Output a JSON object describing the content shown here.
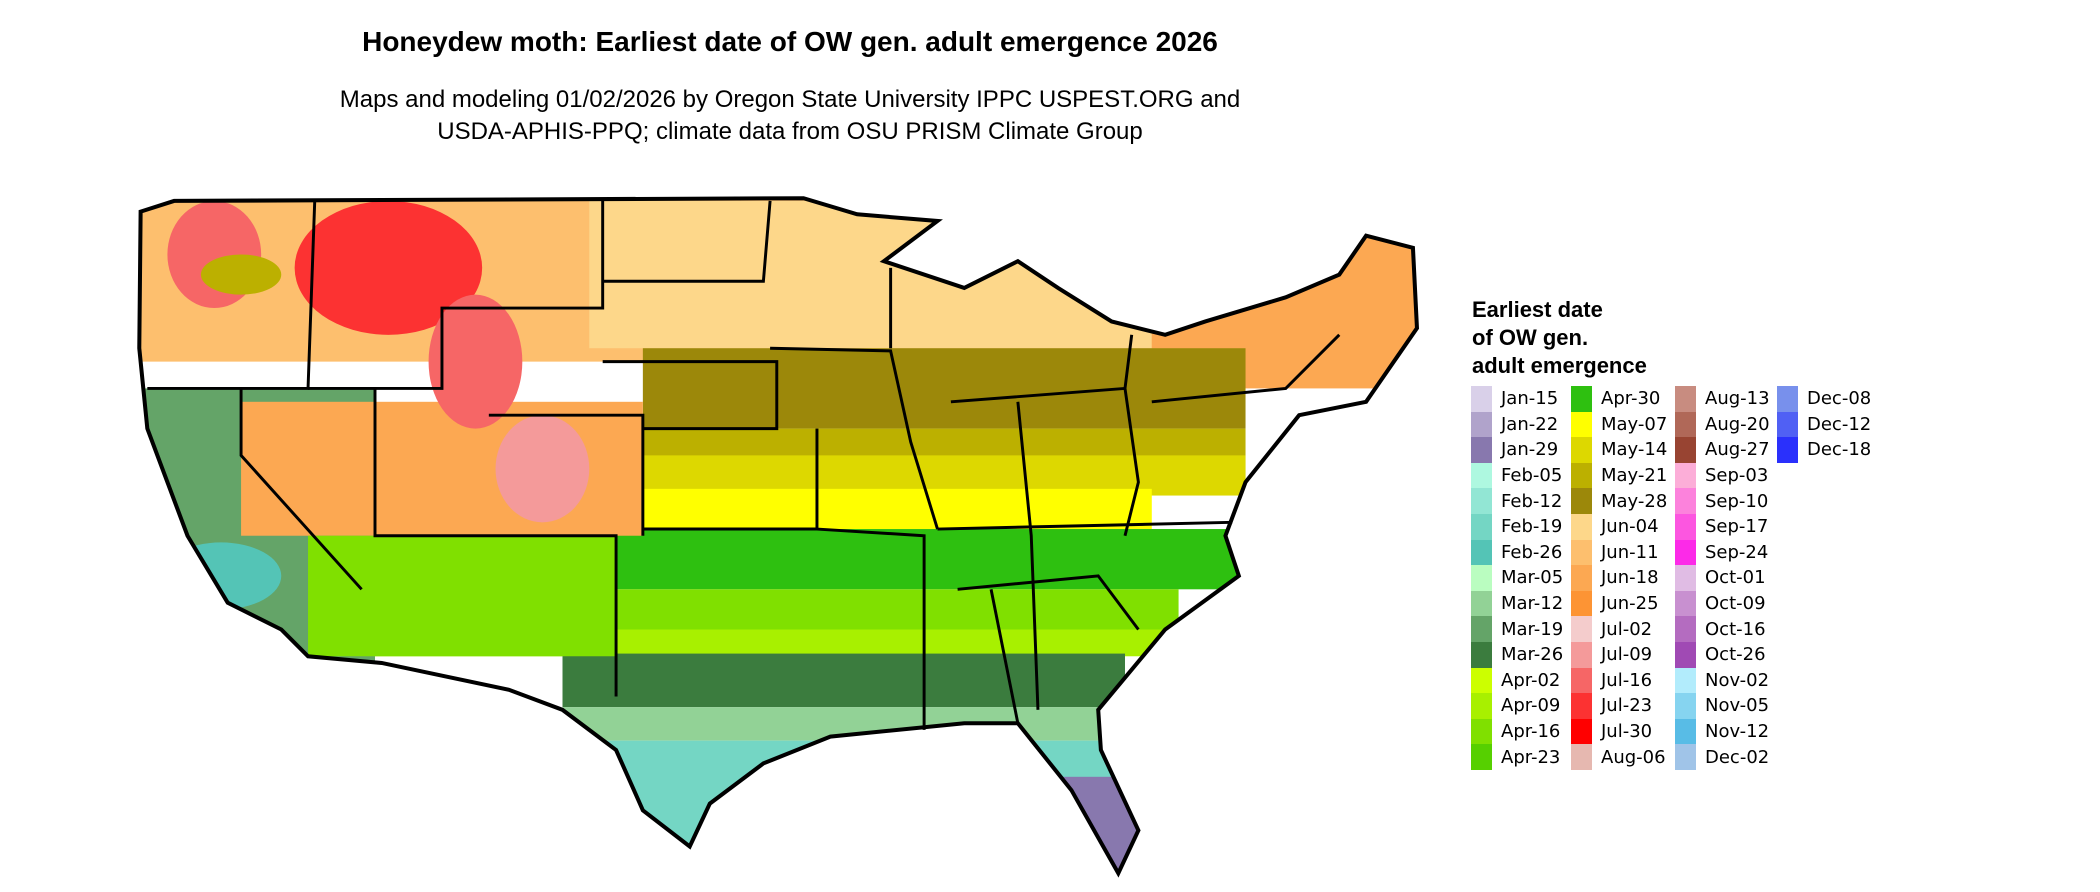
{
  "title": "Honeydew moth: Earliest date of OW gen. adult emergence 2026",
  "subtitle_lines": [
    "Maps and modeling 01/02/2026 by Oregon State University IPPC USPEST.ORG and",
    "USDA-APHIS-PPQ; climate data from OSU PRISM Climate Group"
  ],
  "legend": {
    "title_lines": [
      "Earliest date",
      "of OW gen.",
      "adult emergence"
    ],
    "columns": [
      [
        {
          "label": "Jan-15",
          "color": "#d9d0e9"
        },
        {
          "label": "Jan-22",
          "color": "#b0a3cb"
        },
        {
          "label": "Jan-29",
          "color": "#8878ae"
        },
        {
          "label": "Feb-05",
          "color": "#aef8e0"
        },
        {
          "label": "Feb-12",
          "color": "#92e6d4"
        },
        {
          "label": "Feb-19",
          "color": "#74d6c4"
        },
        {
          "label": "Feb-26",
          "color": "#54c4b6"
        },
        {
          "label": "Mar-05",
          "color": "#bafdc0"
        },
        {
          "label": "Mar-12",
          "color": "#92d296"
        },
        {
          "label": "Mar-19",
          "color": "#64a468"
        },
        {
          "label": "Mar-26",
          "color": "#3b7c3e"
        },
        {
          "label": "Apr-02",
          "color": "#ccff00"
        },
        {
          "label": "Apr-09",
          "color": "#a8f000"
        },
        {
          "label": "Apr-16",
          "color": "#80e000"
        },
        {
          "label": "Apr-23",
          "color": "#56d000"
        }
      ],
      [
        {
          "label": "Apr-30",
          "color": "#2ec010"
        },
        {
          "label": "May-07",
          "color": "#ffff00"
        },
        {
          "label": "May-14",
          "color": "#ddd800"
        },
        {
          "label": "May-21",
          "color": "#bcb000"
        },
        {
          "label": "May-28",
          "color": "#9c880a"
        },
        {
          "label": "Jun-04",
          "color": "#fdd78a"
        },
        {
          "label": "Jun-11",
          "color": "#fdbf6e"
        },
        {
          "label": "Jun-18",
          "color": "#fca852"
        },
        {
          "label": "Jun-25",
          "color": "#fd9434"
        },
        {
          "label": "Jul-02",
          "color": "#f4cccc"
        },
        {
          "label": "Jul-09",
          "color": "#f49a9a"
        },
        {
          "label": "Jul-16",
          "color": "#f66666"
        },
        {
          "label": "Jul-23",
          "color": "#fc3232"
        },
        {
          "label": "Jul-30",
          "color": "#ff0000"
        },
        {
          "label": "Aug-06",
          "color": "#e6b8b0"
        }
      ],
      [
        {
          "label": "Aug-13",
          "color": "#c88c80"
        },
        {
          "label": "Aug-20",
          "color": "#b06858"
        },
        {
          "label": "Aug-27",
          "color": "#984432"
        },
        {
          "label": "Sep-03",
          "color": "#fcaed8"
        },
        {
          "label": "Sep-10",
          "color": "#fc82dc"
        },
        {
          "label": "Sep-17",
          "color": "#fc56e0"
        },
        {
          "label": "Sep-24",
          "color": "#fc2ae8"
        },
        {
          "label": "Oct-01",
          "color": "#e0bce4"
        },
        {
          "label": "Oct-09",
          "color": "#c890d0"
        },
        {
          "label": "Oct-16",
          "color": "#b46cc0"
        },
        {
          "label": "Oct-26",
          "color": "#a04ab4"
        },
        {
          "label": "Nov-02",
          "color": "#b2ecfc"
        },
        {
          "label": "Nov-05",
          "color": "#86d4f0"
        },
        {
          "label": "Nov-12",
          "color": "#58bce6"
        },
        {
          "label": "Dec-02",
          "color": "#a0c4e8"
        }
      ],
      [
        {
          "label": "Dec-08",
          "color": "#7890ec"
        },
        {
          "label": "Dec-12",
          "color": "#5060f4"
        },
        {
          "label": "Dec-18",
          "color": "#2a30fc"
        }
      ]
    ]
  }
}
